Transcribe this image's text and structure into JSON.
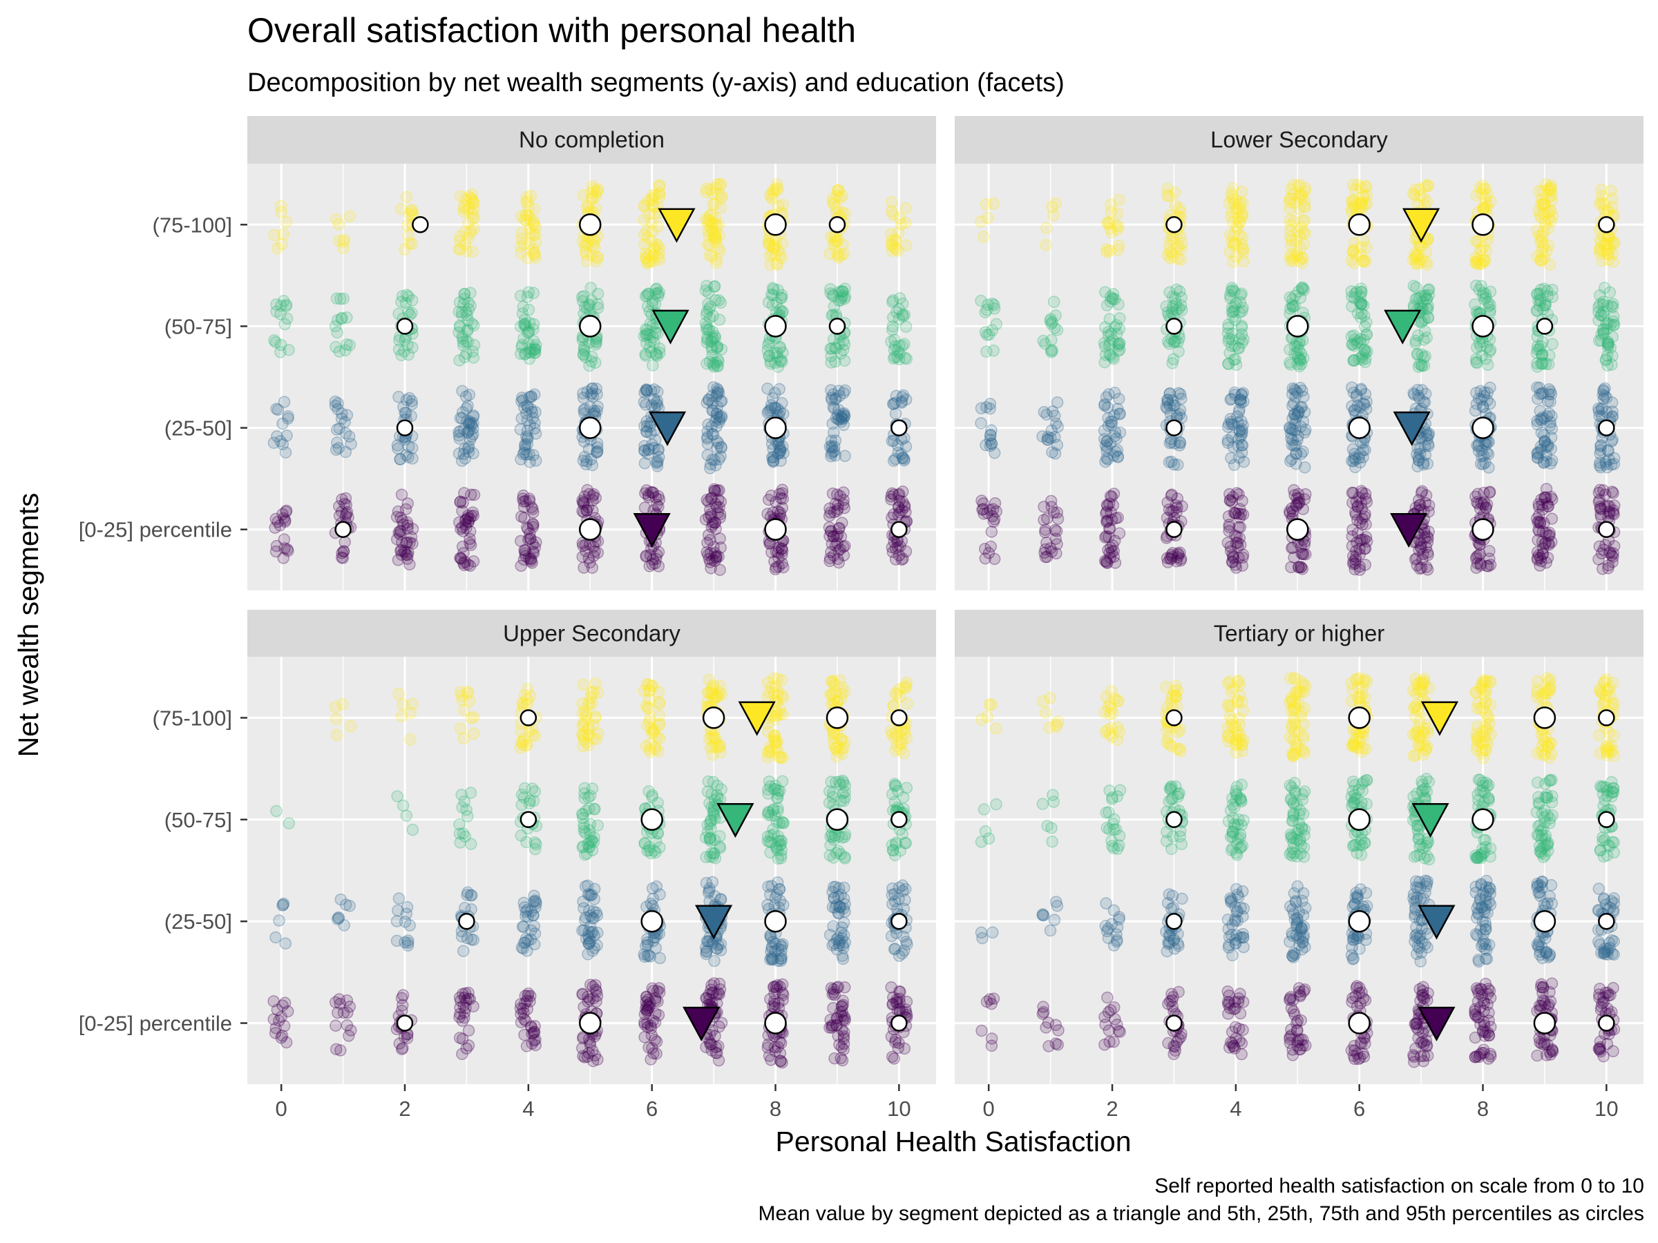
{
  "chart_data": {
    "type": "scatter",
    "title": "Overall satisfaction with personal health",
    "subtitle": "Decomposition by net wealth segments (y-axis) and education (facets)",
    "xlabel": "Personal Health Satisfaction",
    "ylabel": "Net wealth segments",
    "caption": [
      "Self reported health satisfaction on scale from 0 to 10",
      "Mean value by segment depicted as a triangle and 5th, 25th, 75th and 95th percentiles as circles"
    ],
    "xlim": [
      -0.55,
      10.6
    ],
    "x_ticks": [
      0,
      2,
      4,
      6,
      8,
      10
    ],
    "grid": true,
    "legend": "none",
    "categories": [
      "[0-25] percentile",
      "(25-50]",
      "(50-75]",
      "(75-100]"
    ],
    "category_colors": [
      "#440154",
      "#31688E",
      "#35B779",
      "#FDE725"
    ],
    "facets": [
      {
        "name": "No completion",
        "segments": [
          {
            "segment": "[0-25] percentile",
            "mean": 6.0,
            "percentiles": {
              "p5": 1,
              "p25": 5,
              "p75": 8,
              "p95": 10
            },
            "density": [
              0.35,
              0.5,
              0.7,
              0.8,
              0.8,
              0.95,
              0.95,
              1,
              1,
              0.85,
              0.85
            ]
          },
          {
            "segment": "(25-50]",
            "mean": 6.25,
            "percentiles": {
              "p5": 2,
              "p25": 5,
              "p75": 8,
              "p95": 10
            },
            "density": [
              0.25,
              0.35,
              0.6,
              0.8,
              0.8,
              0.95,
              0.95,
              1,
              1,
              0.85,
              0.6
            ]
          },
          {
            "segment": "(50-75]",
            "mean": 6.3,
            "percentiles": {
              "p5": 2,
              "p25": 5,
              "p75": 8,
              "p95": 9
            },
            "density": [
              0.3,
              0.3,
              0.55,
              0.7,
              0.8,
              0.95,
              0.95,
              1,
              1,
              0.85,
              0.6
            ]
          },
          {
            "segment": "(75-100]",
            "mean": 6.4,
            "percentiles": {
              "p5": 2.25,
              "p25": 5,
              "p75": 8,
              "p95": 9
            },
            "density": [
              0.15,
              0.15,
              0.3,
              0.65,
              0.7,
              0.95,
              0.95,
              1,
              1,
              0.7,
              0.4
            ]
          }
        ]
      },
      {
        "name": "Lower Secondary",
        "segments": [
          {
            "segment": "[0-25] percentile",
            "mean": 6.8,
            "percentiles": {
              "p5": 3,
              "p25": 5,
              "p75": 8,
              "p95": 10
            },
            "density": [
              0.4,
              0.45,
              0.75,
              0.8,
              0.9,
              0.95,
              1,
              1,
              1,
              1,
              0.95
            ]
          },
          {
            "segment": "(25-50]",
            "mean": 6.85,
            "percentiles": {
              "p5": 3,
              "p25": 6,
              "p75": 8,
              "p95": 10
            },
            "density": [
              0.3,
              0.35,
              0.75,
              0.8,
              0.9,
              1,
              1,
              1,
              1,
              1,
              0.95
            ]
          },
          {
            "segment": "(50-75]",
            "mean": 6.7,
            "percentiles": {
              "p5": 3,
              "p25": 5,
              "p75": 8,
              "p95": 9
            },
            "density": [
              0.3,
              0.3,
              0.75,
              0.8,
              0.9,
              1,
              1,
              1,
              1,
              1,
              0.95
            ]
          },
          {
            "segment": "(75-100]",
            "mean": 7.0,
            "percentiles": {
              "p5": 3,
              "p25": 6,
              "p75": 8,
              "p95": 10
            },
            "density": [
              0.1,
              0.1,
              0.35,
              0.75,
              0.85,
              1,
              1,
              1,
              1,
              1,
              0.95
            ]
          }
        ]
      },
      {
        "name": "Upper Secondary",
        "segments": [
          {
            "segment": "[0-25] percentile",
            "mean": 6.8,
            "percentiles": {
              "p5": 2,
              "p25": 5,
              "p75": 8,
              "p95": 10
            },
            "density": [
              0.3,
              0.3,
              0.4,
              0.5,
              0.6,
              0.9,
              0.85,
              1,
              1,
              0.85,
              0.8
            ]
          },
          {
            "segment": "(25-50]",
            "mean": 7.0,
            "percentiles": {
              "p5": 3,
              "p25": 6,
              "p75": 8,
              "p95": 10
            },
            "density": [
              0.12,
              0.15,
              0.25,
              0.4,
              0.6,
              0.8,
              0.85,
              1,
              1,
              0.85,
              0.75
            ]
          },
          {
            "segment": "(50-75]",
            "mean": 7.35,
            "percentiles": {
              "p5": 4,
              "p25": 6,
              "p75": 9,
              "p95": 10
            },
            "density": [
              0.05,
              0,
              0.08,
              0.25,
              0.5,
              0.7,
              0.7,
              0.9,
              1,
              0.9,
              0.75
            ]
          },
          {
            "segment": "(75-100]",
            "mean": 7.7,
            "percentiles": {
              "p5": 4,
              "p25": 7,
              "p75": 9,
              "p95": 10
            },
            "density": [
              0,
              0.1,
              0.12,
              0.25,
              0.5,
              0.7,
              0.7,
              0.9,
              1,
              0.9,
              0.75
            ]
          }
        ]
      },
      {
        "name": "Tertiary or higher",
        "segments": [
          {
            "segment": "[0-25] percentile",
            "mean": 7.25,
            "percentiles": {
              "p5": 3,
              "p25": 6,
              "p75": 9,
              "p95": 10
            },
            "density": [
              0.15,
              0.2,
              0.3,
              0.55,
              0.6,
              0.7,
              0.8,
              0.95,
              1,
              0.95,
              0.75
            ]
          },
          {
            "segment": "(25-50]",
            "mean": 7.25,
            "percentiles": {
              "p5": 3,
              "p25": 6,
              "p75": 9,
              "p95": 10
            },
            "density": [
              0.06,
              0.15,
              0.3,
              0.6,
              0.7,
              0.85,
              0.9,
              1,
              1,
              0.95,
              0.85
            ]
          },
          {
            "segment": "(50-75]",
            "mean": 7.15,
            "percentiles": {
              "p5": 3,
              "p25": 6,
              "p75": 8,
              "p95": 10
            },
            "density": [
              0.1,
              0.12,
              0.4,
              0.6,
              0.8,
              0.95,
              0.95,
              1,
              1,
              0.95,
              0.85
            ]
          },
          {
            "segment": "(75-100]",
            "mean": 7.3,
            "percentiles": {
              "p5": 3,
              "p25": 6,
              "p75": 9,
              "p95": 10
            },
            "density": [
              0.1,
              0.15,
              0.4,
              0.75,
              0.85,
              1,
              1,
              1,
              1,
              1,
              0.95
            ]
          }
        ]
      }
    ]
  }
}
